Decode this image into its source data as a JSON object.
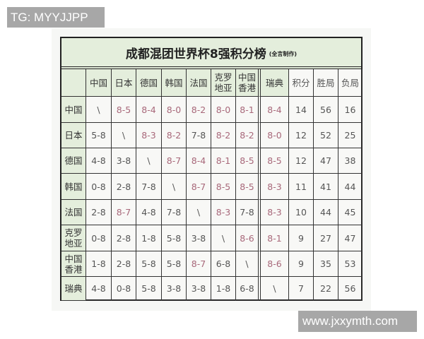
{
  "watermark_top": "TG: MYYJJPP",
  "watermark_bottom": "www.jxxymth.com",
  "table": {
    "title": "成都混团世界杯8强积分榜",
    "subtitle": "(全言制作)",
    "teams": [
      "中国",
      "日本",
      "德国",
      "韩国",
      "法国",
      "克罗\n地亚",
      "中国\n香港",
      "瑞典"
    ],
    "stat_headers": [
      "积分",
      "胜局",
      "负局"
    ],
    "rows": [
      {
        "team": "中国",
        "results": [
          "\\",
          "8-5",
          "8-4",
          "8-0",
          "8-2",
          "8-0",
          "8-1",
          "8-4"
        ],
        "stats": [
          "14",
          "56",
          "16"
        ]
      },
      {
        "team": "日本",
        "results": [
          "5-8",
          "\\",
          "8-3",
          "8-2",
          "7-8",
          "8-2",
          "8-2",
          "8-0"
        ],
        "stats": [
          "12",
          "52",
          "25"
        ]
      },
      {
        "team": "德国",
        "results": [
          "4-8",
          "3-8",
          "\\",
          "8-7",
          "8-4",
          "8-1",
          "8-5",
          "8-5"
        ],
        "stats": [
          "12",
          "47",
          "38"
        ]
      },
      {
        "team": "韩国",
        "results": [
          "0-8",
          "2-8",
          "7-8",
          "\\",
          "8-7",
          "8-5",
          "8-5",
          "8-3"
        ],
        "stats": [
          "11",
          "41",
          "44"
        ]
      },
      {
        "team": "法国",
        "results": [
          "2-8",
          "8-7",
          "4-8",
          "7-8",
          "\\",
          "8-3",
          "7-8",
          "8-3"
        ],
        "stats": [
          "10",
          "44",
          "45"
        ]
      },
      {
        "team": "克罗\n地亚",
        "results": [
          "0-8",
          "2-8",
          "1-8",
          "5-8",
          "3-8",
          "\\",
          "8-6",
          "8-1"
        ],
        "stats": [
          "9",
          "27",
          "47"
        ]
      },
      {
        "team": "中国\n香港",
        "results": [
          "1-8",
          "2-8",
          "5-8",
          "5-8",
          "8-7",
          "6-8",
          "\\",
          "8-6"
        ],
        "stats": [
          "9",
          "35",
          "53"
        ]
      },
      {
        "team": "瑞典",
        "results": [
          "4-8",
          "0-8",
          "5-8",
          "3-8",
          "3-8",
          "1-8",
          "6-8",
          "\\"
        ],
        "stats": [
          "7",
          "22",
          "56"
        ]
      }
    ],
    "colors": {
      "win": "#a8687a",
      "other": "#555555",
      "header_bg": "#e4eedc"
    }
  }
}
